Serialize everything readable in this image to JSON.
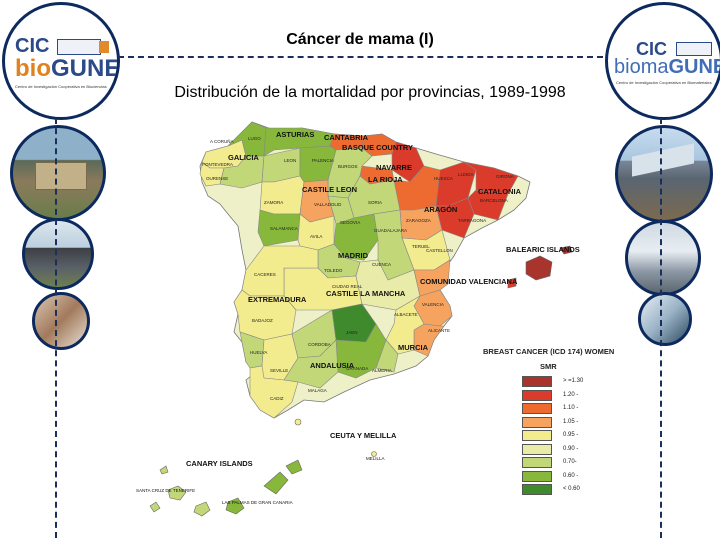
{
  "title": "Cáncer de mama (I)",
  "subtitle": "Distribución de la mortalidad por provincias, 1989-1998",
  "logos": {
    "left": {
      "cic": "CIC",
      "brand_a": "bio",
      "brand_b": "GUNE",
      "tagline": "Centro de Investigación Cooperativa en Biociencias"
    },
    "right": {
      "cic": "CIC",
      "brand_a": "bioma",
      "brand_b": "GUNE",
      "tagline": "Centro de Investigación Cooperativa en Biomateriales"
    }
  },
  "map_labels": {
    "galicia": "GALICIA",
    "asturias": "ASTURIAS",
    "cantabria": "CANTABRIA",
    "basque": "BASQUE COUNTRY",
    "navarre": "NAVARRE",
    "rioja": "LA RIOJA",
    "castile_leon": "CASTILE LEON",
    "aragon": "ARAGÓN",
    "catalonia": "CATALONIA",
    "balearic": "BALEARIC ISLANDS",
    "madrid": "MADRID",
    "valenciana": "COMUNIDAD VALENCIANA",
    "extremadura": "EXTREMADURA",
    "castilla_mancha": "CASTILE LA MANCHA",
    "murcia": "MURCIA",
    "andalusia": "ANDALUSIA",
    "ceuta": "CEUTA Y MELILLA",
    "canary": "CANARY ISLANDS",
    "tenerife": "SANTA CRUZ DE TENERIFE",
    "gran_canaria": "LAS PALMAS DE GRAN CANARIA",
    "melilla": "MELILLA"
  },
  "province_labels": [
    "A CORUÑA",
    "LUGO",
    "PONTEVEDRA",
    "OURENSE",
    "LEON",
    "PALENCIA",
    "BURGOS",
    "ZAMORA",
    "VALLADOLID",
    "SORIA",
    "SALAMANCA",
    "AVILA",
    "SEGOVIA",
    "GUADALAJARA",
    "TOLEDO",
    "CUENCA",
    "TERUEL",
    "CASTELLON",
    "HUESCA",
    "LLEIDA",
    "GIRONA",
    "BARCELONA",
    "TARRAGONA",
    "ZARAGOZA",
    "VALENCIA",
    "ALBACETE",
    "CIUDAD REAL",
    "CACERES",
    "BADAJOZ",
    "HUELVA",
    "SEVILLE",
    "CORDOBA",
    "JAEN",
    "GRANADA",
    "MALAGA",
    "CADIZ",
    "ALMERIA",
    "ALICANTE"
  ],
  "legend": {
    "title": "BREAST CANCER (ICD 174) WOMEN",
    "subtitle": "SMR",
    "items": [
      {
        "label": "> =1.30",
        "color": "#a9342d"
      },
      {
        "label": "1.20 -",
        "color": "#db3b2a"
      },
      {
        "label": "1.10 -",
        "color": "#ed6a30"
      },
      {
        "label": "1.05 -",
        "color": "#f5a35e"
      },
      {
        "label": "0.95 -",
        "color": "#f3ec8f"
      },
      {
        "label": "0.90 -",
        "color": "#e8eca8"
      },
      {
        "label": "0.70-",
        "color": "#c2d878"
      },
      {
        "label": "0.60 -",
        "color": "#87b83b"
      },
      {
        "label": "< 0.60",
        "color": "#3e8a2d"
      }
    ]
  }
}
